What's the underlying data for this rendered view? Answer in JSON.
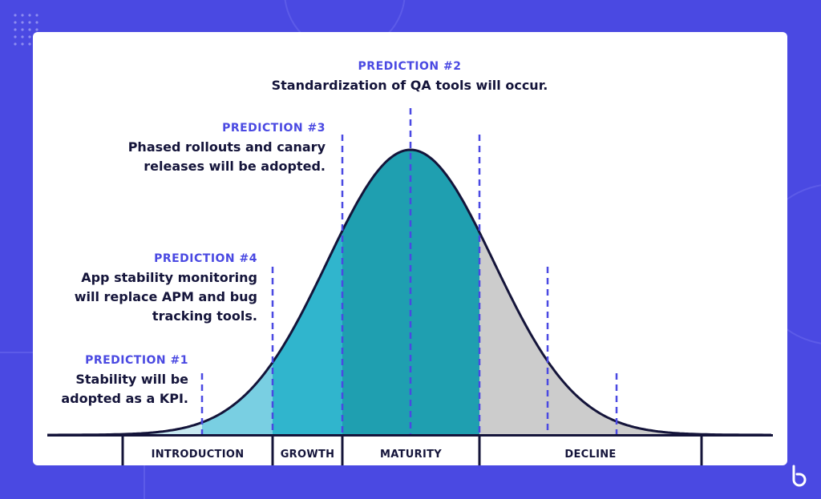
{
  "predictions": [
    {
      "id": "p2",
      "heading": "PREDICTION #2",
      "text": [
        "Standardization of QA tools will occur."
      ]
    },
    {
      "id": "p3",
      "heading": "PREDICTION #3",
      "text": [
        "Phased rollouts and canary",
        "releases will be adopted."
      ]
    },
    {
      "id": "p4",
      "heading": "PREDICTION #4",
      "text": [
        "App stability monitoring",
        "will replace APM and bug",
        "tracking tools."
      ]
    },
    {
      "id": "p1",
      "heading": "PREDICTION #1",
      "text": [
        "Stability will be",
        "adopted as a KPI."
      ]
    }
  ],
  "stages": [
    "INTRODUCTION",
    "GROWTH",
    "MATURITY",
    "DECLINE"
  ],
  "colors": {
    "background": "#4a49e2",
    "accent": "#4a49e2",
    "text": "#14143a",
    "introduction": "#79cfe2",
    "introduction_tail": "#c8e9f1",
    "growth": "#30b5cd",
    "maturity": "#1f9fb0",
    "decline": "#cccccc"
  },
  "icons": [
    "brand-logo-icon"
  ]
}
